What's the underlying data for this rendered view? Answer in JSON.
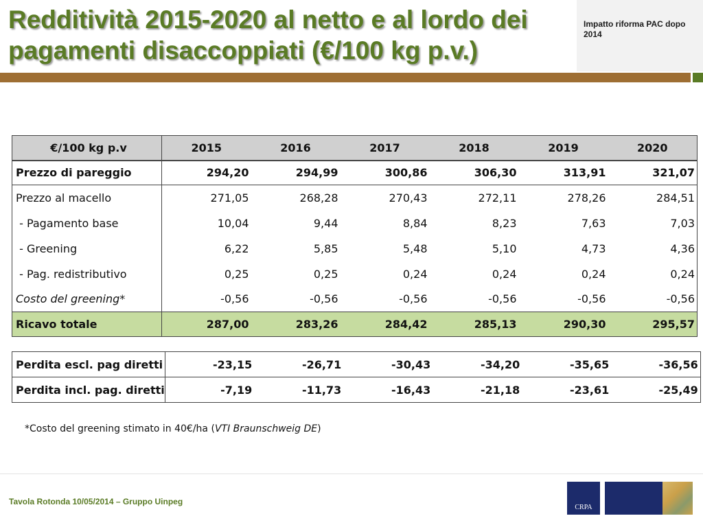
{
  "header": {
    "title": "Redditività 2015-2020 al netto e al lordo dei pagamenti disaccoppiati (€/100 kg p.v.)",
    "side_label": "Impatto riforma PAC dopo 2014"
  },
  "table": {
    "corner": "€/100 kg p.v",
    "years": [
      "2015",
      "2016",
      "2017",
      "2018",
      "2019",
      "2020"
    ],
    "rows": [
      {
        "label": "Prezzo di pareggio",
        "values": [
          "294,20",
          "294,99",
          "300,86",
          "306,30",
          "313,91",
          "321,07"
        ]
      },
      {
        "label": "Prezzo al macello",
        "values": [
          "271,05",
          "268,28",
          "270,43",
          "272,11",
          "278,26",
          "284,51"
        ]
      },
      {
        "label": " - Pagamento base",
        "values": [
          "10,04",
          "9,44",
          "8,84",
          "8,23",
          "7,63",
          "7,03"
        ]
      },
      {
        "label": " - Greening",
        "values": [
          "6,22",
          "5,85",
          "5,48",
          "5,10",
          "4,73",
          "4,36"
        ]
      },
      {
        "label": " - Pag. redistributivo",
        "values": [
          "0,25",
          "0,25",
          "0,24",
          "0,24",
          "0,24",
          "0,24"
        ]
      },
      {
        "label": "Costo del greening*",
        "values": [
          "-0,56",
          "-0,56",
          "-0,56",
          "-0,56",
          "-0,56",
          "-0,56"
        ]
      },
      {
        "label": "Ricavo totale",
        "values": [
          "287,00",
          "283,26",
          "284,42",
          "285,13",
          "290,30",
          "295,57"
        ]
      }
    ]
  },
  "loss_table": {
    "rows": [
      {
        "label": "Perdita escl. pag diretti",
        "values": [
          "-23,15",
          "-26,71",
          "-30,43",
          "-34,20",
          "-35,65",
          "-36,56"
        ]
      },
      {
        "label": "Perdita incl. pag. diretti",
        "values": [
          "-7,19",
          "-11,73",
          "-16,43",
          "-21,18",
          "-23,61",
          "-25,49"
        ]
      }
    ]
  },
  "footnote": {
    "text": "*Costo del greening stimato in 40€/ha (",
    "source": "VTI Braunschweig DE",
    "close": ")"
  },
  "footer": {
    "text": "Tavola Rotonda  10/05/2014 – Gruppo Uinpeg",
    "logo_text": "CRPA"
  },
  "colors": {
    "title_green": "#5a7b25",
    "rule_brown": "#9e6e33",
    "header_gray": "#d0d0d0",
    "total_green": "#c6dca0",
    "logo_navy": "#1c2b6b"
  }
}
